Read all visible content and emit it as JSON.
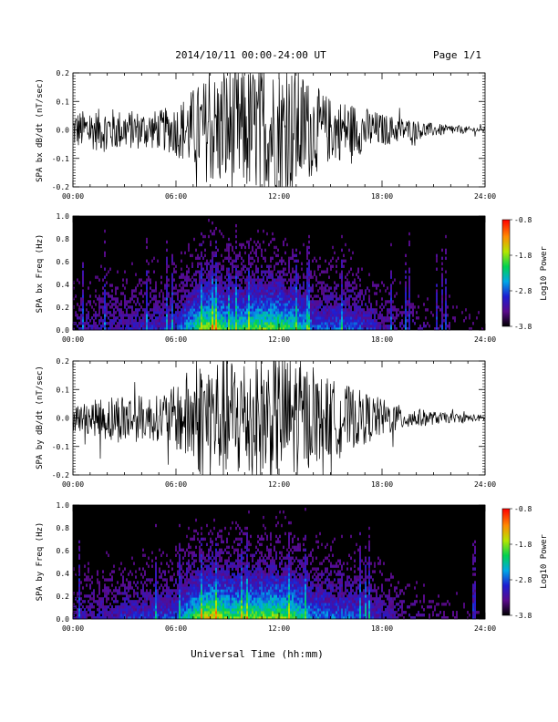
{
  "header": {
    "title": "2014/10/11   00:00-24:00 UT",
    "page": "Page 1/1"
  },
  "xlabel": "Universal Time (hh:mm)",
  "colors": {
    "background": "#ffffff",
    "foreground": "#000000"
  },
  "chart_data": [
    {
      "type": "line",
      "ylabel": "SPA bx dB/dt (nT/sec)",
      "xlim": [
        "00:00",
        "24:00"
      ],
      "ylim": [
        -0.2,
        0.2
      ],
      "x_ticks": [
        "00:00",
        "06:00",
        "12:00",
        "18:00",
        "24:00"
      ],
      "y_ticks": [
        "-0.2",
        "-0.1",
        "0.0",
        "0.1",
        "0.2"
      ],
      "envelope": {
        "x_hours": [
          0,
          1,
          2,
          3,
          4,
          5,
          6,
          7,
          8,
          9,
          10,
          11,
          12,
          13,
          14,
          15,
          16,
          17,
          18,
          19,
          20,
          21,
          22,
          23,
          24
        ],
        "amplitude": [
          0.06,
          0.06,
          0.07,
          0.06,
          0.06,
          0.06,
          0.08,
          0.13,
          0.17,
          0.2,
          0.2,
          0.2,
          0.2,
          0.2,
          0.14,
          0.1,
          0.09,
          0.07,
          0.05,
          0.04,
          0.03,
          0.02,
          0.015,
          0.01,
          0.008
        ]
      }
    },
    {
      "type": "heatmap",
      "ylabel": "SPA bx Freq (Hz)",
      "xlim": [
        "00:00",
        "24:00"
      ],
      "ylim": [
        0,
        1.0
      ],
      "x_ticks": [
        "00:00",
        "06:00",
        "12:00",
        "18:00",
        "24:00"
      ],
      "y_ticks": [
        "0.0",
        "0.2",
        "0.4",
        "0.6",
        "0.8",
        "1.0"
      ],
      "colorbar": {
        "label": "Log10 Power",
        "ticks": [
          "-0.8",
          "-1.8",
          "-2.8",
          "-3.8"
        ],
        "range": [
          -3.8,
          -0.8
        ]
      },
      "activity": {
        "x_hours": [
          0,
          1,
          2,
          3,
          4,
          5,
          6,
          7,
          8,
          9,
          10,
          11,
          12,
          13,
          14,
          15,
          16,
          17,
          18,
          19,
          20,
          21,
          22,
          23,
          24
        ],
        "level": [
          0.15,
          0.18,
          0.2,
          0.22,
          0.24,
          0.25,
          0.3,
          0.55,
          0.75,
          0.55,
          0.6,
          0.65,
          0.65,
          0.55,
          0.35,
          0.35,
          0.35,
          0.28,
          0.2,
          0.15,
          0.12,
          0.1,
          0.08,
          0.06,
          0.05
        ]
      }
    },
    {
      "type": "line",
      "ylabel": "SPA by dB/dt (nT/sec)",
      "xlim": [
        "00:00",
        "24:00"
      ],
      "ylim": [
        -0.2,
        0.2
      ],
      "x_ticks": [
        "00:00",
        "06:00",
        "12:00",
        "18:00",
        "24:00"
      ],
      "y_ticks": [
        "-0.2",
        "-0.1",
        "0.0",
        "0.1",
        "0.2"
      ],
      "envelope": {
        "x_hours": [
          0,
          1,
          2,
          3,
          4,
          5,
          6,
          7,
          8,
          9,
          10,
          11,
          12,
          13,
          14,
          15,
          16,
          17,
          18,
          19,
          20,
          21,
          22,
          23,
          24
        ],
        "amplitude": [
          0.04,
          0.05,
          0.07,
          0.08,
          0.07,
          0.07,
          0.1,
          0.17,
          0.2,
          0.2,
          0.2,
          0.2,
          0.2,
          0.2,
          0.14,
          0.12,
          0.1,
          0.08,
          0.06,
          0.04,
          0.03,
          0.02,
          0.015,
          0.012,
          0.01
        ]
      }
    },
    {
      "type": "heatmap",
      "ylabel": "SPA by Freq (Hz)",
      "xlim": [
        "00:00",
        "24:00"
      ],
      "ylim": [
        0,
        1.0
      ],
      "x_ticks": [
        "00:00",
        "06:00",
        "12:00",
        "18:00",
        "24:00"
      ],
      "y_ticks": [
        "0.0",
        "0.2",
        "0.4",
        "0.6",
        "0.8",
        "1.0"
      ],
      "colorbar": {
        "label": "Log10 Power",
        "ticks": [
          "-0.8",
          "-1.8",
          "-2.8",
          "-3.8"
        ],
        "range": [
          -3.8,
          -0.8
        ]
      },
      "activity": {
        "x_hours": [
          0,
          1,
          2,
          3,
          4,
          5,
          6,
          7,
          8,
          9,
          10,
          11,
          12,
          13,
          14,
          15,
          16,
          17,
          18,
          19,
          20,
          21,
          22,
          23,
          24
        ],
        "level": [
          0.18,
          0.2,
          0.22,
          0.25,
          0.28,
          0.3,
          0.35,
          0.6,
          0.8,
          0.65,
          0.65,
          0.7,
          0.7,
          0.6,
          0.4,
          0.38,
          0.35,
          0.3,
          0.22,
          0.16,
          0.12,
          0.1,
          0.08,
          0.06,
          0.05
        ]
      }
    }
  ]
}
